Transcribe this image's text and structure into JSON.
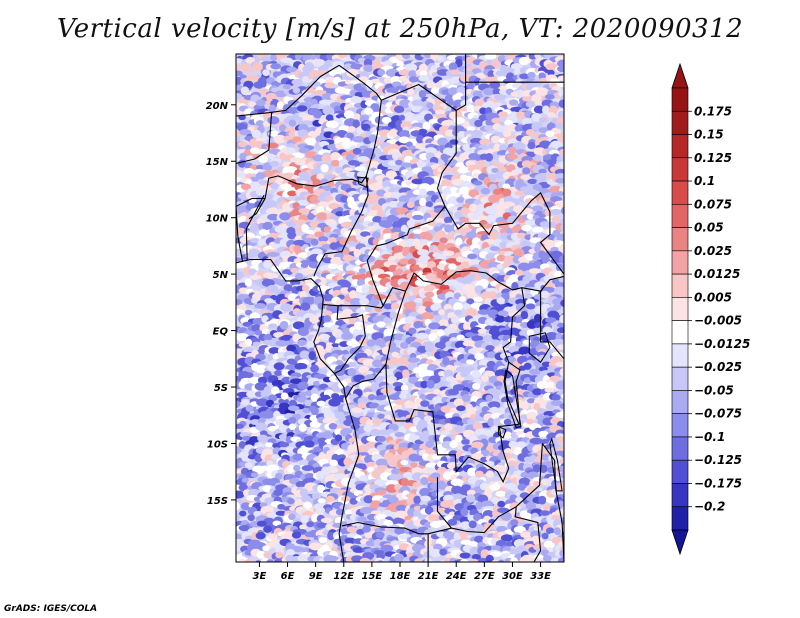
{
  "credit": "GrADS: IGES/COLA",
  "chart_data": {
    "type": "heatmap",
    "title": "Vertical velocity [m/s] at 250hPa, VT: 2020090312",
    "variable": "Vertical velocity",
    "units": "m/s",
    "level": "250hPa",
    "valid_time": "2020090312",
    "xlabel": "",
    "ylabel": "",
    "xlim": [
      0.5,
      35.5
    ],
    "ylim": [
      -20.5,
      24.5
    ],
    "x_ticks": [
      {
        "value": 3,
        "label": "3E"
      },
      {
        "value": 6,
        "label": "6E"
      },
      {
        "value": 9,
        "label": "9E"
      },
      {
        "value": 12,
        "label": "12E"
      },
      {
        "value": 15,
        "label": "15E"
      },
      {
        "value": 18,
        "label": "18E"
      },
      {
        "value": 21,
        "label": "21E"
      },
      {
        "value": 24,
        "label": "24E"
      },
      {
        "value": 27,
        "label": "27E"
      },
      {
        "value": 30,
        "label": "30E"
      },
      {
        "value": 33,
        "label": "33E"
      }
    ],
    "y_ticks": [
      {
        "value": 20,
        "label": "20N"
      },
      {
        "value": 15,
        "label": "15N"
      },
      {
        "value": 10,
        "label": "10N"
      },
      {
        "value": 5,
        "label": "5N"
      },
      {
        "value": 0,
        "label": "EQ"
      },
      {
        "value": -5,
        "label": "5S"
      },
      {
        "value": -10,
        "label": "10S"
      },
      {
        "value": -15,
        "label": "15S"
      }
    ],
    "colorbar": {
      "levels": [
        {
          "label": "0.175",
          "color": "#a01c1c"
        },
        {
          "label": "0.15",
          "color": "#b42828"
        },
        {
          "label": "0.125",
          "color": "#c83838"
        },
        {
          "label": "0.1",
          "color": "#d84c4c"
        },
        {
          "label": "0.075",
          "color": "#e26666"
        },
        {
          "label": "0.05",
          "color": "#ea8484"
        },
        {
          "label": "0.025",
          "color": "#f2a4a4"
        },
        {
          "label": "0.0125",
          "color": "#f8c6c6"
        },
        {
          "label": "0.005",
          "color": "#fce4e4"
        },
        {
          "label": "−0.005",
          "color": "#ffffff"
        },
        {
          "label": "−0.0125",
          "color": "#e4e4fc"
        },
        {
          "label": "−0.025",
          "color": "#c8c8f8"
        },
        {
          "label": "−0.05",
          "color": "#aaaaf2"
        },
        {
          "label": "−0.075",
          "color": "#8c8cea"
        },
        {
          "label": "−0.1",
          "color": "#6e6ee0"
        },
        {
          "label": "−0.125",
          "color": "#5050d4"
        },
        {
          "label": "−0.175",
          "color": "#3636c2"
        },
        {
          "label": "−0.2",
          "color": "#2020a8"
        }
      ],
      "top_color": "#961414",
      "bottom_color": "#141496",
      "arrows": "both"
    }
  }
}
